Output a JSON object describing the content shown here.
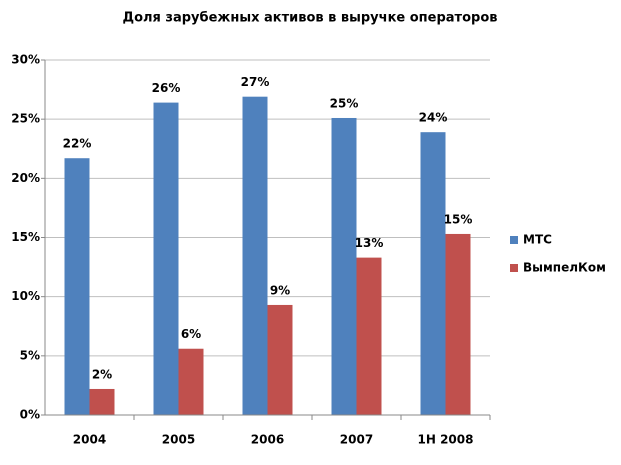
{
  "chart_data": {
    "type": "bar",
    "title": "Доля зарубежных активов в выручке операторов",
    "categories": [
      "2004",
      "2005",
      "2006",
      "2007",
      "1H 2008"
    ],
    "series": [
      {
        "name": "МТС",
        "color": "#4f81bd",
        "values": [
          21.7,
          26.4,
          26.9,
          25.1,
          23.9
        ],
        "value_labels": [
          "22%",
          "26%",
          "27%",
          "25%",
          "24%"
        ]
      },
      {
        "name": "ВымпелКом",
        "color": "#c0504d",
        "values": [
          2.2,
          5.6,
          9.3,
          13.3,
          15.3
        ],
        "value_labels": [
          "2%",
          "6%",
          "9%",
          "13%",
          "15%"
        ]
      }
    ],
    "ylim": [
      0,
      30
    ],
    "yticks": [
      {
        "value": 0,
        "label": "0%"
      },
      {
        "value": 5,
        "label": "5%"
      },
      {
        "value": 10,
        "label": "10%"
      },
      {
        "value": 15,
        "label": "15%"
      },
      {
        "value": 20,
        "label": "20%"
      },
      {
        "value": 25,
        "label": "25%"
      },
      {
        "value": 30,
        "label": "30%"
      }
    ],
    "grid": true,
    "legend": "right"
  }
}
